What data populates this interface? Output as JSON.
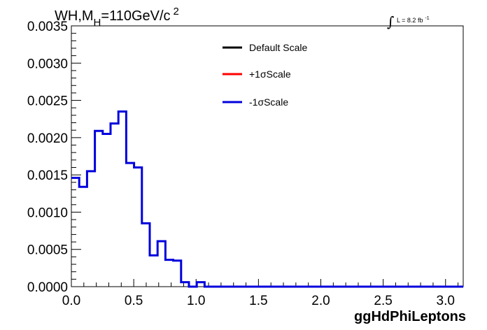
{
  "chart_data": {
    "type": "step",
    "title_main": "WH,M",
    "title_sub": "H",
    "title_rest": "=110GeV/c",
    "title_sup": "2",
    "lumi_label": "L = 8.2 fb",
    "lumi_sup": "-1",
    "xlabel": "ggHdPhiLeptons",
    "ylabel": "",
    "xlim": [
      0,
      3.1416
    ],
    "ylim": [
      0,
      0.0035
    ],
    "x_ticks": [
      "0.0",
      "0.5",
      "1.0",
      "1.5",
      "2.0",
      "2.5",
      "3.0"
    ],
    "x_tick_values": [
      0,
      0.5,
      1.0,
      1.5,
      2.0,
      2.5,
      3.0
    ],
    "y_ticks": [
      "0.0000",
      "0.0005",
      "0.0010",
      "0.0015",
      "0.0020",
      "0.0025",
      "0.0030",
      "0.0035"
    ],
    "y_tick_values": [
      0,
      0.0005,
      0.001,
      0.0015,
      0.002,
      0.0025,
      0.003,
      0.0035
    ],
    "bin_edges_start": 0,
    "bin_width": 0.06283,
    "legend": [
      {
        "label": "Default Scale",
        "color": "#000000"
      },
      {
        "label": "+1σScale",
        "color": "#ff0000"
      },
      {
        "label": "-1σScale",
        "color": "#0000dd"
      }
    ],
    "series": [
      {
        "name": "-1σScale",
        "color": "#0000dd",
        "values": [
          0.00146,
          0.00134,
          0.00155,
          0.00209,
          0.00205,
          0.00219,
          0.00235,
          0.00166,
          0.0016,
          0.00085,
          0.00042,
          0.00061,
          0.00036,
          0.00035,
          6e-05,
          0.0,
          6e-05,
          0.0,
          0.0,
          0.0,
          0.0,
          0.0,
          0.0,
          0.0,
          0.0,
          0.0,
          0.0,
          0.0,
          0.0,
          0.0,
          0.0,
          0.0,
          0.0,
          0.0,
          0.0,
          0.0,
          0.0,
          0.0,
          0.0,
          0.0,
          0.0,
          0.0,
          0.0,
          0.0,
          0.0,
          0.0,
          0.0,
          0.0,
          0.0,
          0.0
        ]
      }
    ]
  }
}
